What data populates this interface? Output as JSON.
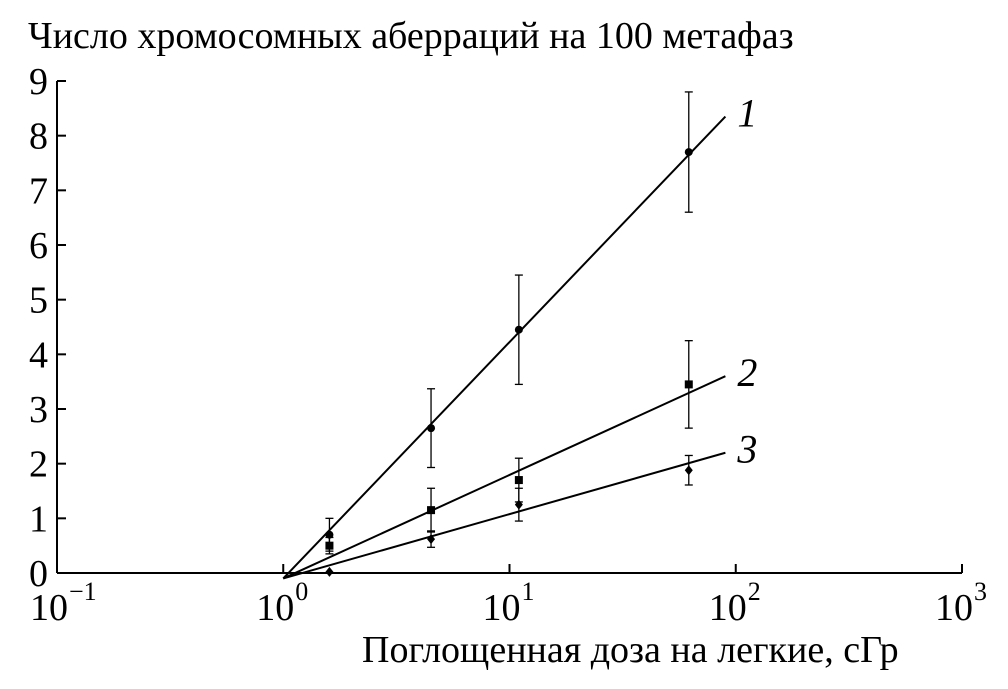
{
  "chart_data": {
    "type": "scatter",
    "title": "Число хромосомных аберраций на 100 метафаз",
    "xlabel": "Поглощенная доза на легкие, сГр",
    "ylabel": "",
    "x_scale": "log",
    "xlim": [
      0.1,
      1000
    ],
    "ylim": [
      0,
      9
    ],
    "x_ticks": [
      {
        "value": 0.1,
        "base": "10",
        "exp": "−1"
      },
      {
        "value": 1,
        "base": "10",
        "exp": "0"
      },
      {
        "value": 10,
        "base": "10",
        "exp": "1"
      },
      {
        "value": 100,
        "base": "10",
        "exp": "2"
      },
      {
        "value": 1000,
        "base": "10",
        "exp": "3"
      }
    ],
    "y_ticks": [
      "0",
      "1",
      "2",
      "3",
      "4",
      "5",
      "6",
      "7",
      "8",
      "9"
    ],
    "grid": false,
    "series": [
      {
        "name": "1",
        "marker": "circle",
        "points": [
          {
            "x": 1.6,
            "y": 0.7,
            "err": 0.3
          },
          {
            "x": 4.5,
            "y": 2.65,
            "err": 0.72
          },
          {
            "x": 11,
            "y": 4.45,
            "err": 1.0
          },
          {
            "x": 62,
            "y": 7.7,
            "err": 1.1
          }
        ],
        "fit": [
          {
            "x": 1.0,
            "y": -0.1
          },
          {
            "x": 90,
            "y": 8.35
          }
        ]
      },
      {
        "name": "2",
        "marker": "square",
        "points": [
          {
            "x": 1.6,
            "y": 0.5,
            "err": 0.15
          },
          {
            "x": 4.5,
            "y": 1.15,
            "err": 0.4
          },
          {
            "x": 11,
            "y": 1.7,
            "err": 0.4
          },
          {
            "x": 62,
            "y": 3.45,
            "err": 0.8
          }
        ],
        "fit": [
          {
            "x": 1.0,
            "y": -0.1
          },
          {
            "x": 90,
            "y": 3.6
          }
        ]
      },
      {
        "name": "3",
        "marker": "diamond",
        "points": [
          {
            "x": 1.6,
            "y": 0.02,
            "err": 0.0
          },
          {
            "x": 4.5,
            "y": 0.62,
            "err": 0.15
          },
          {
            "x": 11,
            "y": 1.25,
            "err": 0.3
          },
          {
            "x": 62,
            "y": 1.88,
            "err": 0.27
          }
        ],
        "fit": [
          {
            "x": 1.0,
            "y": -0.1
          },
          {
            "x": 90,
            "y": 2.2
          }
        ]
      }
    ]
  }
}
